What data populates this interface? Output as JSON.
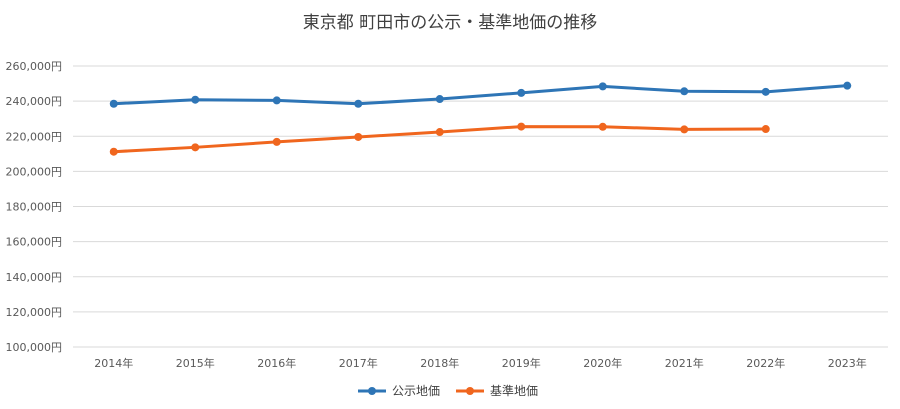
{
  "chart_data": {
    "type": "line",
    "title": "東京都 町田市の公示・基準地価の推移",
    "xlabel": "",
    "ylabel": "",
    "categories": [
      "2014年",
      "2015年",
      "2016年",
      "2017年",
      "2018年",
      "2019年",
      "2020年",
      "2021年",
      "2022年",
      "2023年"
    ],
    "ylim": [
      100000,
      260000
    ],
    "yticks": [
      100000,
      120000,
      140000,
      160000,
      180000,
      200000,
      220000,
      240000,
      260000
    ],
    "ytick_labels": [
      "100,000円",
      "120,000円",
      "140,000円",
      "160,000円",
      "180,000円",
      "200,000円",
      "220,000円",
      "240,000円",
      "260,000円"
    ],
    "grid": true,
    "legend_position": "bottom",
    "series": [
      {
        "name": "公示地価",
        "color": "#2E75B6",
        "values": [
          238500,
          240800,
          240400,
          238500,
          241200,
          244700,
          248400,
          245600,
          245300,
          248800
        ]
      },
      {
        "name": "基準地価",
        "color": "#F0661E",
        "values": [
          211200,
          213700,
          216800,
          219600,
          222400,
          225500,
          225400,
          223900,
          224100,
          null
        ]
      }
    ]
  }
}
